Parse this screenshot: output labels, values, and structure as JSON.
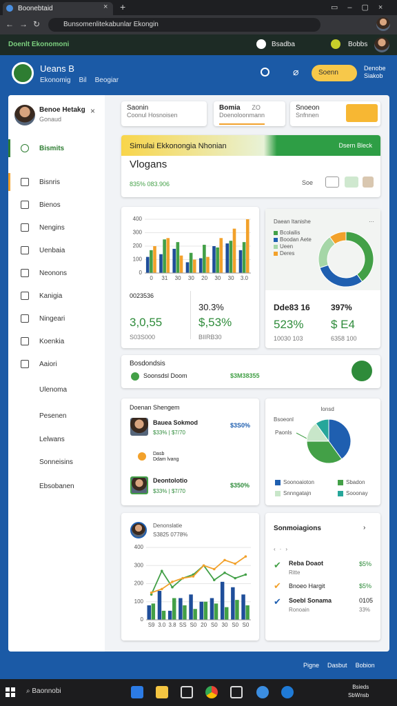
{
  "browser": {
    "tab": "Boonebtaid",
    "address": "Bunsomenlitekabunlar Ekongin",
    "bookmark": "Doenlt Ekonomoni",
    "ext1": "Bsadba",
    "ext2": "Bobbs"
  },
  "header": {
    "title": "Ueans B",
    "nav": [
      "Ekonomig",
      "Bil",
      "Beogiar"
    ],
    "search": "Soenn",
    "user": "Denobe Siakob"
  },
  "sidebar": {
    "user": "Benoe Hetakg",
    "role": "Gonaud",
    "items": [
      "Bismits",
      "Bisnris",
      "Bienos",
      "Nengins",
      "Uenbaia",
      "Neonons",
      "Kanigia",
      "Ningeari",
      "Koenkia",
      "Aaiori",
      "Ulenoma",
      "Pesenen",
      "Lelwans",
      "Sonneisins",
      "Ebsobanen"
    ]
  },
  "top_cards": [
    {
      "title": "Saonin",
      "sub": "Coonul Hosnoisen"
    },
    {
      "title": "Bomia",
      "sub": "Doenoloonmann",
      "extra": "ZO"
    },
    {
      "title": "Snoeon",
      "sub": "Snfnnen"
    }
  ],
  "banner": {
    "title": "Simulai Ekkonongia Nhonian",
    "badge": "Dsern Bleck",
    "heading": "Vlogans",
    "stats": "835% 083.906",
    "button": "Soe"
  },
  "bar_stats": [
    "0023536",
    "30.3%",
    "3,0,55",
    "$,53%",
    "S03S000",
    "BIIRB30"
  ],
  "donut_stats": [
    "Dde83 16",
    "397%",
    "523%",
    "$ E4",
    "10030 103",
    "6358 100"
  ],
  "progress": {
    "title": "Bosdondsis",
    "item": "Soonsdsl Doom",
    "value": "$3M38355"
  },
  "team": {
    "title": "Doenan Shengem",
    "people": [
      {
        "name": "Bauea Sokmod",
        "meta": "$33% | $7/70",
        "pct": "$3S0%"
      },
      {
        "name": "Dasb",
        "meta": "Ddam lvang"
      },
      {
        "name": "Deontolotio",
        "meta": "$33% | $7/70",
        "pct": "$350%"
      }
    ]
  },
  "recs": {
    "title": "Sonmoiagions",
    "items": [
      {
        "name": "Reba Doaot",
        "sub": "Ritte",
        "value": "$5%"
      },
      {
        "name": "Bnoeo Hargit",
        "sub": "",
        "value": "$5%"
      },
      {
        "name": "Soebl Sonama",
        "sub": "Ronoain",
        "value": "0105",
        "value2": "33%"
      }
    ]
  },
  "footer": [
    "Pigne",
    "Dasbut",
    "Bobion"
  ],
  "taskbar": {
    "search": "Baonnobi",
    "time": "Bsieds",
    "date": "SbWnsb"
  },
  "chart_data": [
    {
      "type": "bar",
      "categories": [
        "0",
        "31",
        "30",
        "30",
        "20",
        "30",
        "30",
        "3.0"
      ],
      "series": [
        {
          "name": "Navy",
          "color": "#1f4e9a",
          "values": [
            120,
            140,
            180,
            80,
            110,
            200,
            220,
            170
          ]
        },
        {
          "name": "Green",
          "color": "#43a047",
          "values": [
            170,
            250,
            230,
            150,
            210,
            190,
            240,
            230
          ]
        },
        {
          "name": "Orange",
          "color": "#f2a12b",
          "values": [
            200,
            260,
            130,
            100,
            120,
            260,
            330,
            400
          ]
        }
      ],
      "ylim": [
        0,
        400
      ],
      "yticks": [
        0,
        100,
        200,
        300,
        400
      ],
      "grid": true
    },
    {
      "type": "donut",
      "title": "Daean Itanishe",
      "categories": [
        "Bcolailis",
        "Boodan Aete",
        "Ueen",
        "Deres"
      ],
      "values": [
        40,
        30,
        20,
        10
      ],
      "colors": [
        "#43a047",
        "#1f5fb0",
        "#a5d6a7",
        "#f2a12b"
      ]
    },
    {
      "type": "pie",
      "title": "Ionsd",
      "label": "Paonls",
      "callout": "Bsoeonl",
      "categories": [
        "Soonoaioton",
        "Sbadon",
        "Snnngatajn",
        "Sooonay"
      ],
      "values": [
        40,
        35,
        15,
        10
      ],
      "colors": [
        "#1f5fb0",
        "#43a047",
        "#c8e6c9",
        "#26a69a"
      ]
    },
    {
      "type": "bar",
      "title": "Denonslatie",
      "subtitle": "S3825 0778%",
      "categories": [
        "S9",
        "3.0",
        "3.8",
        "SS",
        "S0",
        "20",
        "S0",
        "30",
        "S0",
        "S0"
      ],
      "series": [
        {
          "name": "Navy",
          "color": "#1f4e9a",
          "values": [
            80,
            160,
            50,
            120,
            140,
            100,
            120,
            210,
            180,
            140
          ]
        },
        {
          "name": "Green",
          "color": "#43a047",
          "values": [
            90,
            50,
            120,
            80,
            60,
            100,
            90,
            70,
            110,
            80
          ]
        },
        {
          "name": "Trend A",
          "type": "line",
          "color": "#43a047",
          "values": [
            140,
            270,
            180,
            230,
            250,
            300,
            220,
            260,
            230,
            250
          ]
        },
        {
          "name": "Trend B",
          "type": "line",
          "color": "#f2a12b",
          "values": [
            150,
            170,
            210,
            230,
            240,
            300,
            280,
            330,
            310,
            350
          ]
        }
      ],
      "ylim": [
        0,
        400
      ],
      "yticks": [
        0,
        100,
        200,
        300,
        400
      ],
      "grid": true
    }
  ]
}
